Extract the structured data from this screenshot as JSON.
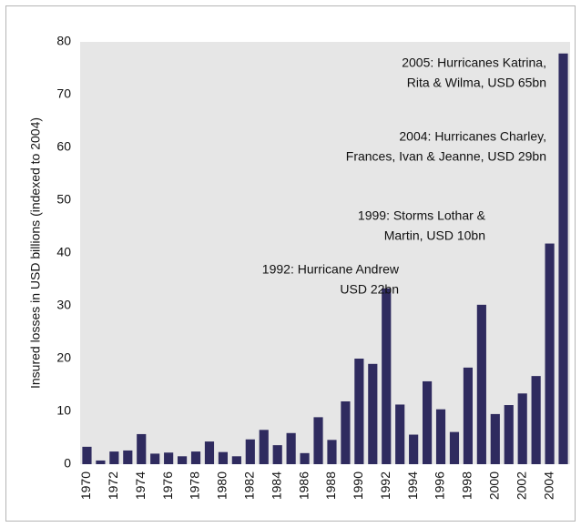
{
  "chart_data": {
    "type": "bar",
    "y_label": "Insured losses in USD billions (indexed to 2004)",
    "categories": [
      "1970",
      null,
      "1972",
      null,
      "1974",
      null,
      "1976",
      null,
      "1978",
      null,
      "1980",
      null,
      "1982",
      null,
      "1984",
      null,
      "1986",
      null,
      "1988",
      null,
      "1990",
      null,
      "1992",
      null,
      "1994",
      null,
      "1996",
      null,
      "1998",
      null,
      "2000",
      null,
      "2002",
      null,
      "2004",
      null
    ],
    "values": [
      3.3,
      0.7,
      2.4,
      2.6,
      5.7,
      2.0,
      2.2,
      1.5,
      2.4,
      4.3,
      2.3,
      1.5,
      4.7,
      6.5,
      3.6,
      5.9,
      2.1,
      8.9,
      4.6,
      11.9,
      20.0,
      19.0,
      33.3,
      11.3,
      5.6,
      15.7,
      10.4,
      6.1,
      18.3,
      30.2,
      9.5,
      11.2,
      13.4,
      16.7,
      41.8,
      77.8
    ],
    "color": "#2f2b5f",
    "ylim": [
      0,
      80
    ],
    "yticks": [
      0,
      10,
      20,
      30,
      40,
      50,
      60,
      70,
      80
    ],
    "annotations": [
      {
        "lines": [
          "2005: Hurricanes Katrina,",
          "Rita & Wilma, USD 65bn"
        ]
      },
      {
        "lines": [
          "2004: Hurricanes Charley,",
          "Frances, Ivan & Jeanne, USD 29bn"
        ]
      },
      {
        "lines": [
          "1999: Storms Lothar &",
          "Martin, USD 10bn"
        ]
      },
      {
        "lines": [
          "1992: Hurricane Andrew",
          "USD 22bn"
        ]
      }
    ]
  }
}
